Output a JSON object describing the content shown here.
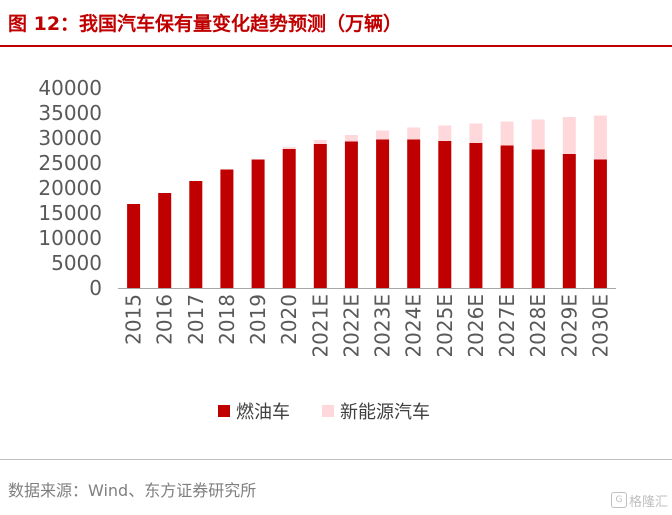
{
  "header": {
    "title": "图 12：我国汽车保有量变化趋势预测（万辆）"
  },
  "chart_data": {
    "type": "bar",
    "stacked": true,
    "categories": [
      "2015",
      "2016",
      "2017",
      "2018",
      "2019",
      "2020",
      "2021E",
      "2022E",
      "2023E",
      "2024E",
      "2025E",
      "2026E",
      "2027E",
      "2028E",
      "2029E",
      "2030E"
    ],
    "series": [
      {
        "name": "燃油车",
        "color": "#c00000",
        "values": [
          16800,
          19000,
          21400,
          23700,
          25700,
          27800,
          28800,
          29300,
          29700,
          29700,
          29400,
          29000,
          28500,
          27700,
          26800,
          25700
        ]
      },
      {
        "name": "新能源汽车",
        "color": "#ffd8dc",
        "values": [
          0,
          0,
          0,
          0,
          0,
          400,
          800,
          1300,
          1800,
          2400,
          3100,
          3900,
          4800,
          6000,
          7400,
          8800
        ]
      }
    ],
    "ylim": [
      0,
      40000
    ],
    "yticks": [
      0,
      5000,
      10000,
      15000,
      20000,
      25000,
      30000,
      35000,
      40000
    ],
    "grid": false,
    "legend_position": "bottom"
  },
  "footer": {
    "source": "数据来源：Wind、东方证券研究所",
    "watermark_text": "格隆汇"
  }
}
